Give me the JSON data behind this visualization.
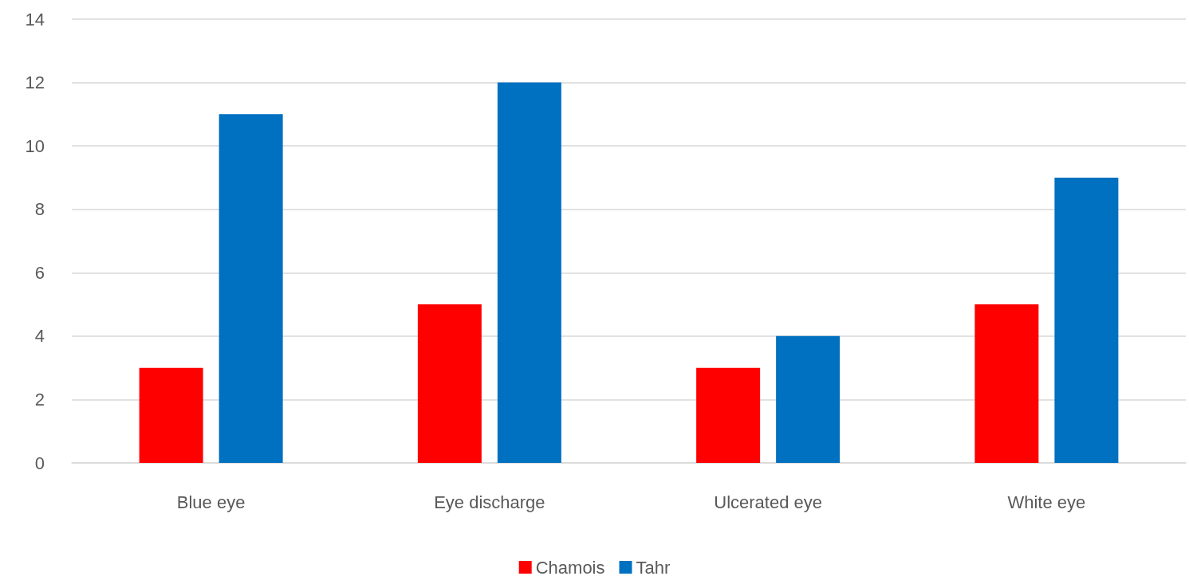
{
  "chart_data": {
    "type": "bar",
    "categories": [
      "Blue eye",
      "Eye discharge",
      "Ulcerated eye",
      "White eye"
    ],
    "series": [
      {
        "name": "Chamois",
        "color": "#ff0000",
        "values": [
          3,
          5,
          3,
          5
        ]
      },
      {
        "name": "Tahr",
        "color": "#0070c0",
        "values": [
          11,
          12,
          4,
          9
        ]
      }
    ],
    "ylim": [
      0,
      14
    ],
    "yticks": [
      0,
      2,
      4,
      6,
      8,
      10,
      12,
      14
    ],
    "grid": "y",
    "legend": "bottom"
  }
}
